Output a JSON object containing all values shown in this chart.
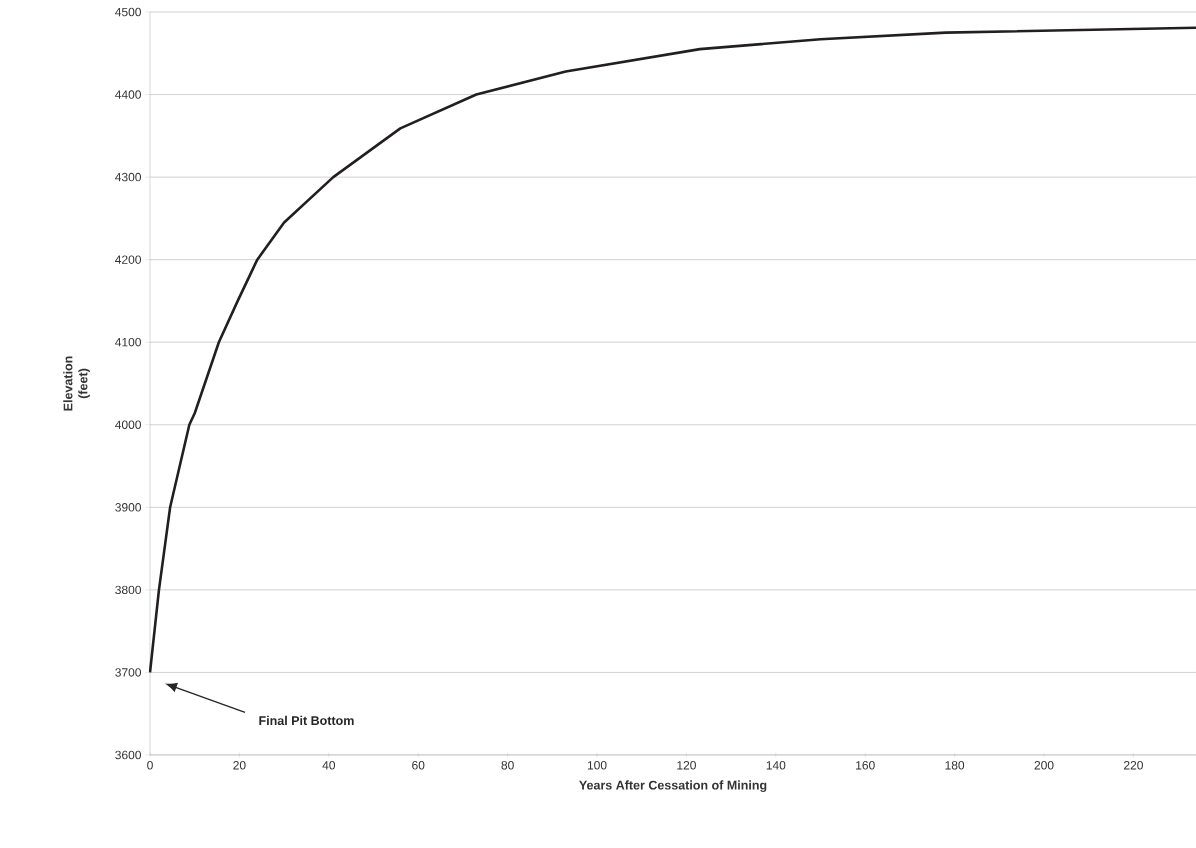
{
  "chart_data": {
    "type": "line",
    "xlabel": "Years After Cessation of Mining",
    "ylabel": "Elevation (feet)",
    "x": [
      0,
      2,
      3.8,
      4.5,
      8.8,
      10,
      15.4,
      19.7,
      24,
      30,
      41,
      56,
      73,
      93,
      123,
      150,
      178,
      234
    ],
    "series": [
      {
        "color": "#231f20",
        "values": [
          3700,
          3800,
          3872,
          3900,
          4000,
          4014,
          4100,
          4151,
          4200,
          4245,
          4300,
          4359,
          4400,
          4428,
          4455,
          4467,
          4475,
          4481
        ]
      }
    ],
    "xlim": [
      0,
      234
    ],
    "xticks": [
      0,
      20,
      40,
      60,
      80,
      100,
      120,
      140,
      160,
      180,
      200,
      220
    ],
    "ylim": [
      3600,
      4500
    ],
    "yticks": [
      3600,
      3700,
      3800,
      3900,
      4000,
      4100,
      4200,
      4300,
      4400,
      4500
    ],
    "grid": "y",
    "legend": false,
    "marker": "none",
    "line_style": "solid",
    "annotations": [
      "Final Pit Bottom"
    ]
  }
}
